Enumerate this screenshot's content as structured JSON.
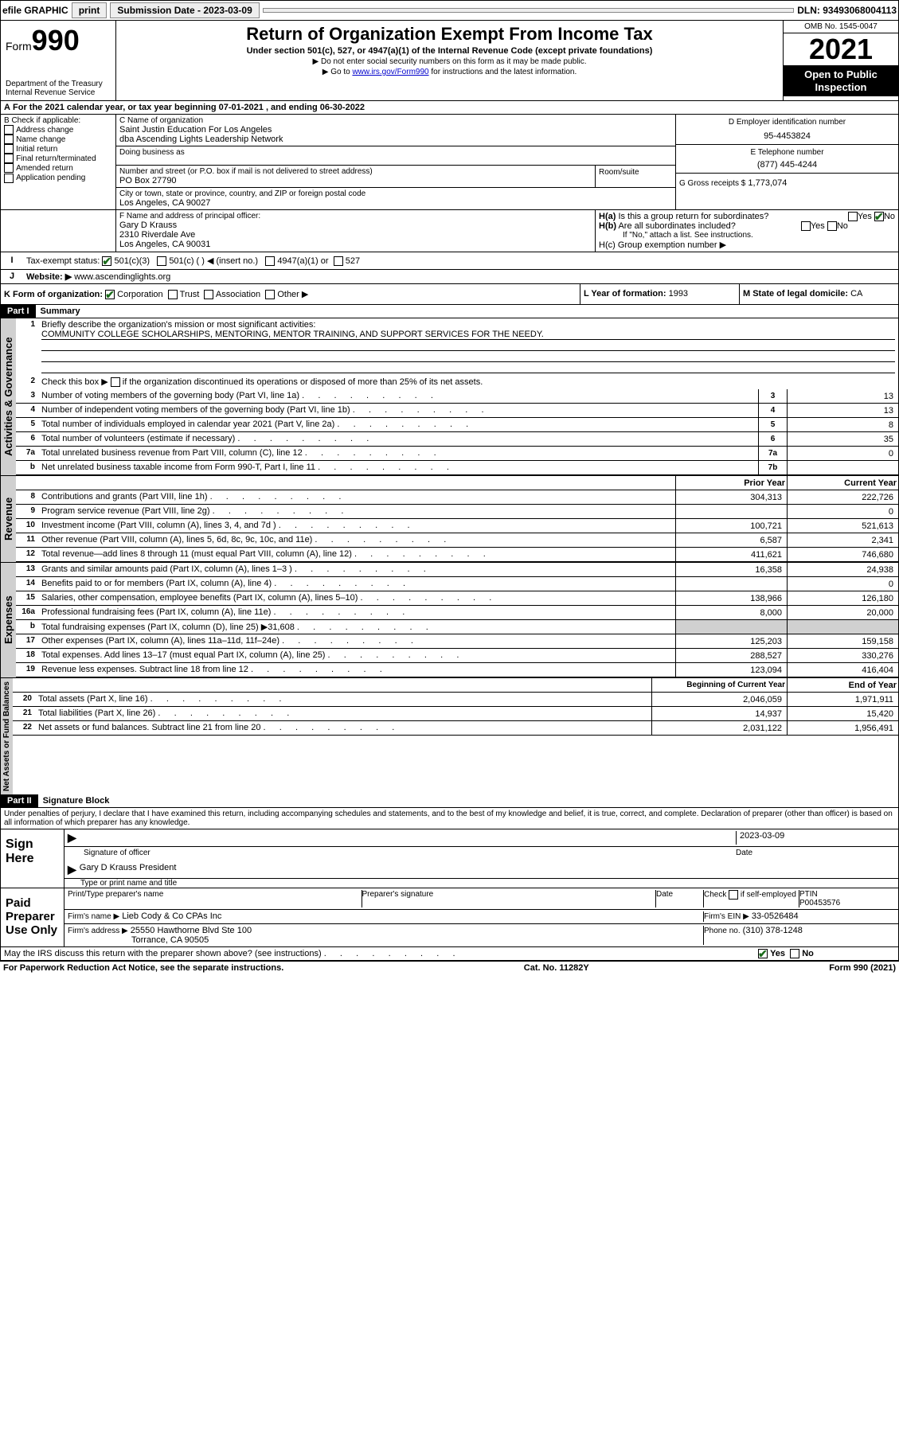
{
  "topbar": {
    "efile_label": "efile GRAPHIC",
    "print_label": "print",
    "submission_label": "Submission Date - 2023-03-09",
    "dln_label": "DLN: 93493068004113"
  },
  "header": {
    "form_label": "Form",
    "form_number": "990",
    "dept": "Department of the Treasury\nInternal Revenue Service",
    "title": "Return of Organization Exempt From Income Tax",
    "subtitle": "Under section 501(c), 527, or 4947(a)(1) of the Internal Revenue Code (except private foundations)",
    "note1": "▶ Do not enter social security numbers on this form as it may be made public.",
    "note2_prefix": "▶ Go to ",
    "note2_link": "www.irs.gov/Form990",
    "note2_suffix": " for instructions and the latest information.",
    "omb": "OMB No. 1545-0047",
    "year": "2021",
    "inspect": "Open to Public Inspection"
  },
  "period": {
    "text": "For the 2021 calendar year, or tax year beginning 07-01-2021   , and ending 06-30-2022"
  },
  "boxB": {
    "title": "B Check if applicable:",
    "items": [
      "Address change",
      "Name change",
      "Initial return",
      "Final return/terminated",
      "Amended return",
      "Application pending"
    ]
  },
  "boxC": {
    "label": "C Name of organization",
    "name1": "Saint Justin Education For Los Angeles",
    "name2": "dba Ascending Lights Leadership Network",
    "dba_label": "Doing business as",
    "addr_label": "Number and street (or P.O. box if mail is not delivered to street address)",
    "room_label": "Room/suite",
    "addr": "PO Box 27790",
    "city_label": "City or town, state or province, country, and ZIP or foreign postal code",
    "city": "Los Angeles, CA  90027"
  },
  "boxD": {
    "label": "D Employer identification number",
    "value": "95-4453824"
  },
  "boxE": {
    "label": "E Telephone number",
    "value": "(877) 445-4244"
  },
  "boxG": {
    "label": "G Gross receipts $",
    "value": "1,773,074"
  },
  "boxF": {
    "label": "F Name and address of principal officer:",
    "name": "Gary D Krauss",
    "addr": "2310 Riverdale Ave",
    "city": "Los Angeles, CA  90031"
  },
  "boxH": {
    "a_label": "H(a)  Is this a group return for subordinates?",
    "b_label": "H(b)  Are all subordinates included?",
    "b_note": "If \"No,\" attach a list. See instructions.",
    "c_label": "H(c)  Group exemption number ▶",
    "yes": "Yes",
    "no": "No"
  },
  "taxexempt": {
    "label": "Tax-exempt status:",
    "opt1": "501(c)(3)",
    "opt2": "501(c) (  ) ◀ (insert no.)",
    "opt3": "4947(a)(1) or",
    "opt4": "527"
  },
  "website": {
    "label": "Website: ▶",
    "value": "www.ascendinglights.org"
  },
  "boxK": {
    "label": "K Form of organization:",
    "opts": [
      "Corporation",
      "Trust",
      "Association",
      "Other ▶"
    ]
  },
  "boxL": {
    "label": "L Year of formation:",
    "value": "1993"
  },
  "boxM": {
    "label": "M State of legal domicile:",
    "value": "CA"
  },
  "part1": {
    "header": "Part I",
    "title": "Summary",
    "mission_label": "Briefly describe the organization's mission or most significant activities:",
    "mission": "COMMUNITY COLLEGE SCHOLARSHIPS, MENTORING, MENTOR TRAINING, AND SUPPORT SERVICES FOR THE NEEDY.",
    "line2": "Check this box ▶           if the organization discontinued its operations or disposed of more than 25% of its net assets.",
    "governance_label": "Activities & Governance",
    "revenue_label": "Revenue",
    "expenses_label": "Expenses",
    "netassets_label": "Net Assets or Fund Balances",
    "gov_lines": [
      {
        "n": "3",
        "t": "Number of voting members of the governing body (Part VI, line 1a)",
        "box": "3",
        "v": "13"
      },
      {
        "n": "4",
        "t": "Number of independent voting members of the governing body (Part VI, line 1b)",
        "box": "4",
        "v": "13"
      },
      {
        "n": "5",
        "t": "Total number of individuals employed in calendar year 2021 (Part V, line 2a)",
        "box": "5",
        "v": "8"
      },
      {
        "n": "6",
        "t": "Total number of volunteers (estimate if necessary)",
        "box": "6",
        "v": "35"
      },
      {
        "n": "7a",
        "t": "Total unrelated business revenue from Part VIII, column (C), line 12",
        "box": "7a",
        "v": "0"
      },
      {
        "n": "b",
        "t": "Net unrelated business taxable income from Form 990-T, Part I, line 11",
        "box": "7b",
        "v": ""
      }
    ],
    "col_prior": "Prior Year",
    "col_current": "Current Year",
    "rev_lines": [
      {
        "n": "8",
        "t": "Contributions and grants (Part VIII, line 1h)",
        "p": "304,313",
        "c": "222,726"
      },
      {
        "n": "9",
        "t": "Program service revenue (Part VIII, line 2g)",
        "p": "",
        "c": "0"
      },
      {
        "n": "10",
        "t": "Investment income (Part VIII, column (A), lines 3, 4, and 7d )",
        "p": "100,721",
        "c": "521,613"
      },
      {
        "n": "11",
        "t": "Other revenue (Part VIII, column (A), lines 5, 6d, 8c, 9c, 10c, and 11e)",
        "p": "6,587",
        "c": "2,341"
      },
      {
        "n": "12",
        "t": "Total revenue—add lines 8 through 11 (must equal Part VIII, column (A), line 12)",
        "p": "411,621",
        "c": "746,680"
      }
    ],
    "exp_lines": [
      {
        "n": "13",
        "t": "Grants and similar amounts paid (Part IX, column (A), lines 1–3 )",
        "p": "16,358",
        "c": "24,938"
      },
      {
        "n": "14",
        "t": "Benefits paid to or for members (Part IX, column (A), line 4)",
        "p": "",
        "c": "0"
      },
      {
        "n": "15",
        "t": "Salaries, other compensation, employee benefits (Part IX, column (A), lines 5–10)",
        "p": "138,966",
        "c": "126,180"
      },
      {
        "n": "16a",
        "t": "Professional fundraising fees (Part IX, column (A), line 11e)",
        "p": "8,000",
        "c": "20,000"
      },
      {
        "n": "b",
        "t": "Total fundraising expenses (Part IX, column (D), line 25) ▶31,608",
        "p": "SHADE",
        "c": "SHADE"
      },
      {
        "n": "17",
        "t": "Other expenses (Part IX, column (A), lines 11a–11d, 11f–24e)",
        "p": "125,203",
        "c": "159,158"
      },
      {
        "n": "18",
        "t": "Total expenses. Add lines 13–17 (must equal Part IX, column (A), line 25)",
        "p": "288,527",
        "c": "330,276"
      },
      {
        "n": "19",
        "t": "Revenue less expenses. Subtract line 18 from line 12",
        "p": "123,094",
        "c": "416,404"
      }
    ],
    "col_begin": "Beginning of Current Year",
    "col_end": "End of Year",
    "net_lines": [
      {
        "n": "20",
        "t": "Total assets (Part X, line 16)",
        "p": "2,046,059",
        "c": "1,971,911"
      },
      {
        "n": "21",
        "t": "Total liabilities (Part X, line 26)",
        "p": "14,937",
        "c": "15,420"
      },
      {
        "n": "22",
        "t": "Net assets or fund balances. Subtract line 21 from line 20",
        "p": "2,031,122",
        "c": "1,956,491"
      }
    ]
  },
  "part2": {
    "header": "Part II",
    "title": "Signature Block",
    "penalties": "Under penalties of perjury, I declare that I have examined this return, including accompanying schedules and statements, and to the best of my knowledge and belief, it is true, correct, and complete. Declaration of preparer (other than officer) is based on all information of which preparer has any knowledge.",
    "sign_here": "Sign Here",
    "sig_officer": "Signature of officer",
    "sig_date": "Date",
    "sig_date_val": "2023-03-09",
    "sig_name": "Gary D Krauss  President",
    "sig_name_label": "Type or print name and title",
    "paid_label": "Paid Preparer Use Only",
    "prep_name_label": "Print/Type preparer's name",
    "prep_sig_label": "Preparer's signature",
    "date_label": "Date",
    "check_label": "Check         if self-employed",
    "ptin_label": "PTIN",
    "ptin": "P00453576",
    "firm_name_label": "Firm's name    ▶",
    "firm_name": "Lieb Cody & Co CPAs Inc",
    "firm_ein_label": "Firm's EIN ▶",
    "firm_ein": "33-0526484",
    "firm_addr_label": "Firm's address ▶",
    "firm_addr1": "25550 Hawthorne Blvd Ste 100",
    "firm_addr2": "Torrance, CA  90505",
    "phone_label": "Phone no.",
    "phone": "(310) 378-1248",
    "discuss": "May the IRS discuss this return with the preparer shown above? (see instructions)"
  },
  "footer": {
    "left": "For Paperwork Reduction Act Notice, see the separate instructions.",
    "mid": "Cat. No. 11282Y",
    "right": "Form 990 (2021)"
  }
}
